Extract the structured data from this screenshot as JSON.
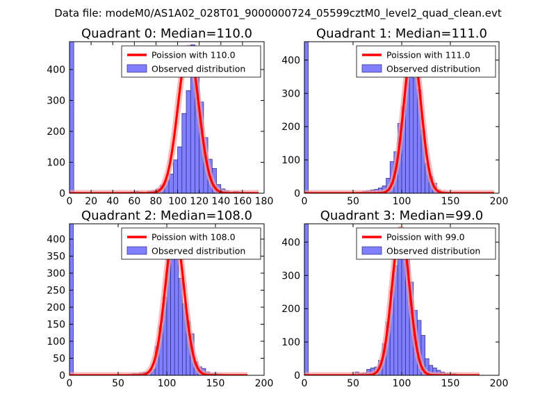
{
  "figure_title": "Data file: modeM0/AS1A02_028T01_9000000724_05599cztM0_level2_quad_clean.evt",
  "colors": {
    "fit": "#ff0000",
    "hist_fill": "#7f7fff",
    "hist_edge": "#2a2a80",
    "glow": "#f3a0a0"
  },
  "chart_data": [
    {
      "type": "bar",
      "title": "Quadrant 0: Median=110.0",
      "xlim": [
        0,
        180
      ],
      "ylim": [
        0,
        490
      ],
      "xticks": [
        0,
        20,
        40,
        60,
        80,
        100,
        120,
        140,
        160,
        180
      ],
      "yticks": [
        0,
        100,
        200,
        300,
        400
      ],
      "legend": {
        "fit_label": "Poission with 110.0",
        "hist_label": "Observed distribution",
        "placement": "top-right"
      },
      "bin_width": 4,
      "bins": [
        [
          0,
          490
        ],
        [
          56,
          4
        ],
        [
          60,
          6
        ],
        [
          64,
          4
        ],
        [
          68,
          3
        ],
        [
          72,
          6
        ],
        [
          76,
          8
        ],
        [
          80,
          14
        ],
        [
          84,
          26
        ],
        [
          88,
          42
        ],
        [
          92,
          62
        ],
        [
          96,
          108
        ],
        [
          100,
          150
        ],
        [
          104,
          258
        ],
        [
          108,
          332
        ],
        [
          112,
          480
        ],
        [
          116,
          390
        ],
        [
          120,
          295
        ],
        [
          124,
          180
        ],
        [
          128,
          110
        ],
        [
          132,
          80
        ],
        [
          136,
          28
        ],
        [
          140,
          14
        ],
        [
          144,
          8
        ],
        [
          148,
          4
        ],
        [
          152,
          6
        ],
        [
          156,
          4
        ],
        [
          160,
          2
        ],
        [
          164,
          1
        ]
      ],
      "fit": {
        "mu": 110.0,
        "sigma": 9.6,
        "peak": 470,
        "x_range": [
          0,
          175
        ]
      }
    },
    {
      "type": "bar",
      "title": "Quadrant 1: Median=111.0",
      "xlim": [
        0,
        200
      ],
      "ylim": [
        0,
        455
      ],
      "xticks": [
        0,
        50,
        100,
        150,
        200
      ],
      "yticks": [
        0,
        100,
        200,
        300,
        400
      ],
      "legend": {
        "fit_label": "Poission with 111.0",
        "hist_label": "Observed distribution",
        "placement": "top-right"
      },
      "bin_width": 4,
      "bins": [
        [
          0,
          455
        ],
        [
          56,
          3
        ],
        [
          60,
          6
        ],
        [
          64,
          8
        ],
        [
          68,
          10
        ],
        [
          72,
          12
        ],
        [
          76,
          16
        ],
        [
          80,
          22
        ],
        [
          84,
          45
        ],
        [
          88,
          95
        ],
        [
          92,
          125
        ],
        [
          96,
          210
        ],
        [
          100,
          260
        ],
        [
          104,
          345
        ],
        [
          108,
          405
        ],
        [
          112,
          345
        ],
        [
          116,
          310
        ],
        [
          120,
          190
        ],
        [
          124,
          90
        ],
        [
          128,
          50
        ],
        [
          132,
          30
        ],
        [
          136,
          10
        ],
        [
          140,
          5
        ],
        [
          144,
          4
        ],
        [
          148,
          2
        ]
      ],
      "fit": {
        "mu": 111.0,
        "sigma": 9.0,
        "peak": 435,
        "x_range": [
          0,
          195
        ]
      }
    },
    {
      "type": "bar",
      "title": "Quadrant 2: Median=108.0",
      "xlim": [
        0,
        200
      ],
      "ylim": [
        0,
        445
      ],
      "xticks": [
        0,
        50,
        100,
        150,
        200
      ],
      "yticks": [
        0,
        50,
        100,
        150,
        200,
        250,
        300,
        350,
        400
      ],
      "legend": {
        "fit_label": "Poission with 108.0",
        "hist_label": "Observed distribution",
        "placement": "top-right"
      },
      "bin_width": 4,
      "bins": [
        [
          0,
          445
        ],
        [
          60,
          3
        ],
        [
          64,
          5
        ],
        [
          68,
          5
        ],
        [
          72,
          7
        ],
        [
          76,
          9
        ],
        [
          80,
          10
        ],
        [
          84,
          18
        ],
        [
          88,
          85
        ],
        [
          92,
          145
        ],
        [
          96,
          230
        ],
        [
          100,
          340
        ],
        [
          104,
          375
        ],
        [
          108,
          420
        ],
        [
          112,
          285
        ],
        [
          116,
          210
        ],
        [
          120,
          158
        ],
        [
          124,
          122
        ],
        [
          128,
          40
        ],
        [
          132,
          25
        ],
        [
          136,
          20
        ],
        [
          140,
          10
        ],
        [
          144,
          5
        ],
        [
          148,
          6
        ],
        [
          152,
          4
        ],
        [
          156,
          3
        ],
        [
          160,
          2
        ]
      ],
      "fit": {
        "mu": 108.0,
        "sigma": 9.7,
        "peak": 425,
        "x_range": [
          0,
          183
        ]
      }
    },
    {
      "type": "bar",
      "title": "Quadrant 3: Median=99.0",
      "xlim": [
        0,
        200
      ],
      "ylim": [
        0,
        455
      ],
      "xticks": [
        0,
        50,
        100,
        150,
        200
      ],
      "yticks": [
        0,
        100,
        200,
        300,
        400
      ],
      "legend": {
        "fit_label": "Poission with 99.0",
        "hist_label": "Observed distribution",
        "placement": "top-right"
      },
      "bin_width": 4,
      "bins": [
        [
          0,
          455
        ],
        [
          52,
          10
        ],
        [
          56,
          6
        ],
        [
          60,
          8
        ],
        [
          64,
          18
        ],
        [
          68,
          22
        ],
        [
          72,
          25
        ],
        [
          76,
          45
        ],
        [
          80,
          95
        ],
        [
          84,
          160
        ],
        [
          88,
          255
        ],
        [
          92,
          330
        ],
        [
          96,
          425
        ],
        [
          100,
          400
        ],
        [
          104,
          390
        ],
        [
          108,
          280
        ],
        [
          112,
          195
        ],
        [
          116,
          165
        ],
        [
          120,
          120
        ],
        [
          124,
          50
        ],
        [
          128,
          30
        ],
        [
          132,
          22
        ],
        [
          136,
          15
        ],
        [
          140,
          10
        ],
        [
          144,
          6
        ],
        [
          148,
          4
        ],
        [
          152,
          5
        ],
        [
          156,
          2
        ]
      ],
      "fit": {
        "mu": 99.0,
        "sigma": 9.0,
        "peak": 440,
        "x_range": [
          0,
          180
        ]
      }
    }
  ]
}
